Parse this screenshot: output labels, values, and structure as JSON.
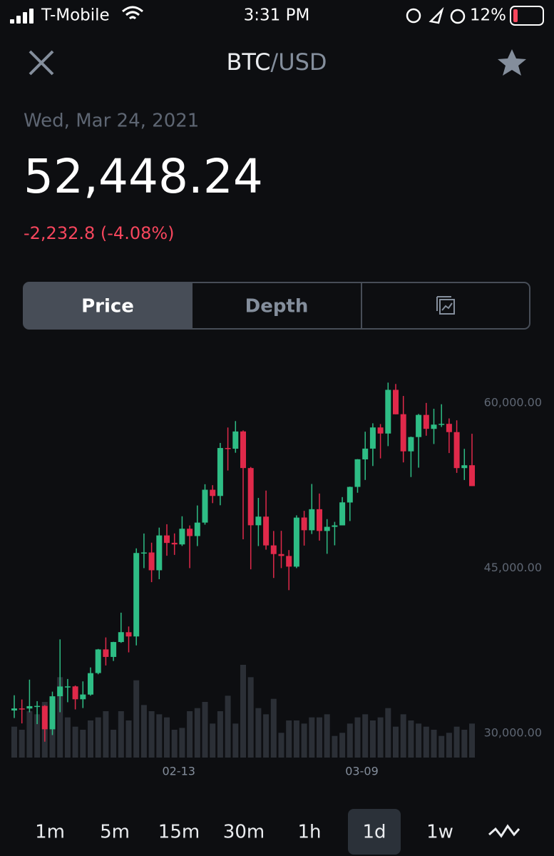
{
  "status_bar": {
    "carrier": "T-Mobile",
    "time": "3:31 PM",
    "battery": "12%"
  },
  "header": {
    "base": "BTC",
    "quote": "/USD"
  },
  "date": "Wed, Mar 24, 2021",
  "price": "52,448.24",
  "change": "-2,232.8 (-4.08%)",
  "tabs": [
    "Price",
    "Depth"
  ],
  "intervals": [
    "1m",
    "5m",
    "15m",
    "30m",
    "1h",
    "1d",
    "1w"
  ],
  "chart_data": {
    "type": "candlestick",
    "categories": [
      null,
      null,
      null,
      null,
      null,
      null,
      null,
      null,
      null,
      null,
      null,
      null,
      null,
      null,
      null,
      null,
      null,
      null,
      null,
      null,
      null,
      "02-13",
      null,
      null,
      null,
      null,
      null,
      null,
      null,
      null,
      null,
      null,
      null,
      null,
      null,
      null,
      null,
      null,
      null,
      null,
      null,
      null,
      null,
      null,
      null,
      "03-09",
      null,
      null,
      null,
      null,
      null,
      null,
      null,
      null,
      null,
      null,
      null,
      null,
      null,
      null,
      null
    ],
    "open": [
      32078,
      32259,
      32254,
      32466,
      32489,
      30366,
      33368,
      34246,
      34262,
      33092,
      33518,
      35472,
      37619,
      36937,
      38290,
      39181,
      38796,
      46374,
      46420,
      44807,
      47969,
      47300,
      47153,
      48577,
      47912,
      49134,
      52117,
      51553,
      55906,
      55841,
      57412,
      54087,
      48891,
      49677,
      47063,
      46277,
      46103,
      45134,
      49595,
      48436,
      50349,
      48374,
      48746,
      48882,
      50959,
      52376,
      54874,
      55851,
      57773,
      57221,
      61188,
      58976,
      55605,
      56901,
      58912,
      57641,
      58030,
      58101,
      57351,
      54083,
      54342
    ],
    "high": [
      33456,
      33071,
      34875,
      32921,
      32557,
      33784,
      38531,
      34933,
      34342,
      34717,
      35984,
      37662,
      38708,
      38310,
      40955,
      39700,
      46794,
      48142,
      47310,
      48678,
      48985,
      48150,
      49707,
      48876,
      50689,
      52618,
      52530,
      56368,
      57767,
      58352,
      57508,
      54183,
      51374,
      52041,
      48373,
      48387,
      46638,
      49791,
      50200,
      52640,
      51773,
      49448,
      49200,
      51450,
      52402,
      54900,
      57387,
      58150,
      58081,
      61844,
      61721,
      60633,
      56938,
      58999,
      60000,
      59468,
      59880,
      58593,
      58420,
      55830,
      57200
    ],
    "low": [
      31390,
      30900,
      31910,
      30837,
      29241,
      29842,
      31915,
      32825,
      32171,
      32296,
      33418,
      35362,
      36161,
      36570,
      38215,
      37351,
      37988,
      45000,
      43727,
      43994,
      46125,
      46202,
      47014,
      45000,
      47002,
      48947,
      50902,
      50710,
      53863,
      55477,
      47622,
      44893,
      47004,
      46675,
      44106,
      45000,
      43000,
      45000,
      47047,
      48100,
      47500,
      46300,
      47070,
      48882,
      49274,
      51845,
      53005,
      54272,
      54962,
      56078,
      58966,
      54600,
      53271,
      54123,
      57023,
      56270,
      57820,
      55450,
      53650,
      53000,
      52448
    ],
    "close": [
      32259,
      32254,
      32467,
      32489,
      30366,
      33364,
      34252,
      34262,
      33092,
      33526,
      35466,
      37618,
      36936,
      38290,
      39186,
      38795,
      46374,
      46420,
      44807,
      47969,
      47287,
      47153,
      48577,
      47911,
      49134,
      52119,
      51552,
      55906,
      55842,
      57408,
      54087,
      48891,
      49677,
      47063,
      46277,
      46106,
      45135,
      49587,
      48440,
      50349,
      48374,
      48751,
      48882,
      50971,
      52375,
      54884,
      55851,
      57773,
      57221,
      61188,
      58968,
      55605,
      56900,
      58912,
      57648,
      58030,
      58102,
      57351,
      54083,
      54340,
      52448
    ],
    "volume": [
      50,
      45,
      75,
      70,
      90,
      85,
      130,
      65,
      50,
      45,
      60,
      65,
      75,
      45,
      75,
      60,
      125,
      85,
      75,
      70,
      65,
      45,
      48,
      75,
      80,
      90,
      55,
      75,
      100,
      55,
      150,
      130,
      80,
      70,
      95,
      40,
      60,
      60,
      55,
      65,
      65,
      70,
      35,
      40,
      55,
      65,
      70,
      60,
      65,
      80,
      50,
      70,
      60,
      55,
      50,
      45,
      35,
      40,
      50,
      45,
      55
    ],
    "up_color": "#2ebd85",
    "down_color": "#e0294a",
    "volume_color": "#2b2f36",
    "ylim": [
      27800,
      64200
    ],
    "yticks": [
      {
        "value": 30000,
        "label": "30,000.00"
      },
      {
        "value": 45000,
        "label": "45,000.00"
      },
      {
        "value": 60000,
        "label": "60,000.00"
      }
    ]
  }
}
